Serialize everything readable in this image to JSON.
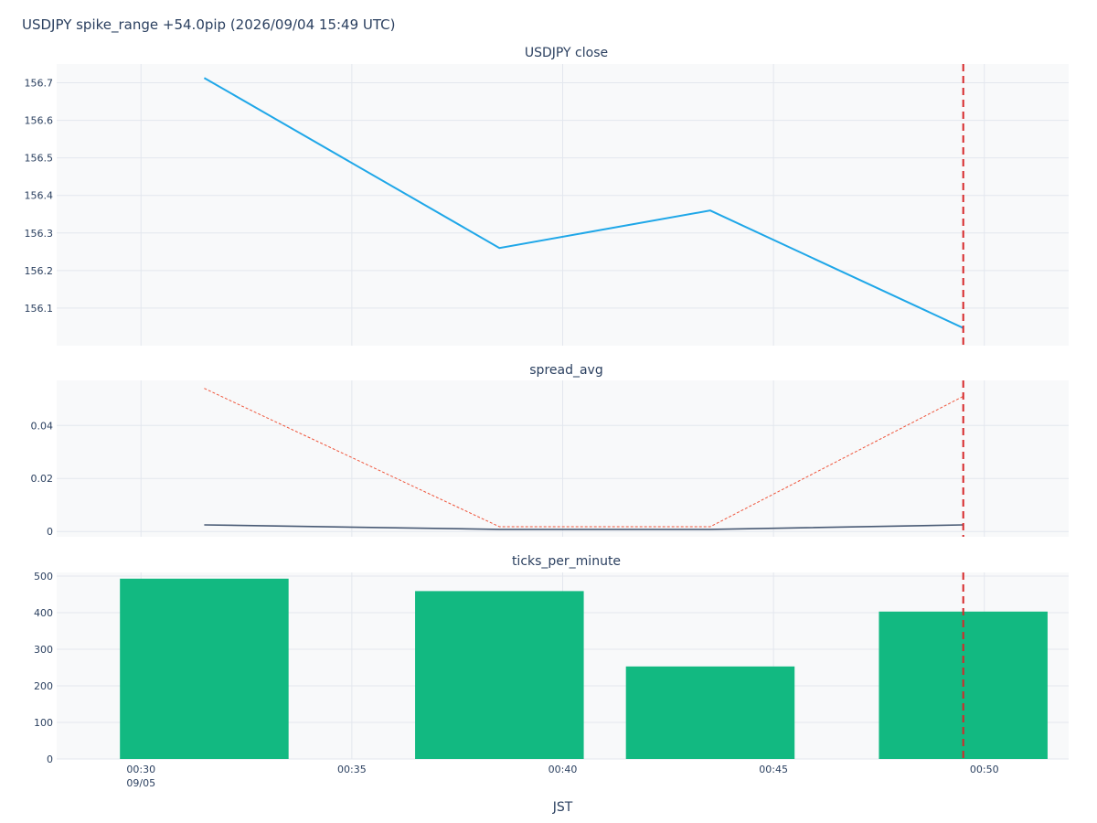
{
  "title": "USDJPY spike_range +54.0pip (2026/09/04 15:49 UTC)",
  "colors": {
    "plot_bg": "#f8f9fa",
    "grid": "#e3e7ee",
    "close_line": "#1fa7e8",
    "spread_line": "#485a74",
    "spread_max_line": "#ef553b",
    "bars": "#12b981",
    "marker_line": "#d62728",
    "text": "#2a3f5f"
  },
  "chart_data": [
    {
      "type": "line",
      "title": "USDJPY close",
      "x": [
        "00:31:30",
        "00:38:30",
        "00:43:30",
        "00:49:30"
      ],
      "series": [
        {
          "values": [
            156.713,
            156.26,
            156.36,
            156.047
          ]
        }
      ],
      "xlim": [
        "00:28",
        "00:52"
      ],
      "ylim": [
        156.0,
        156.75
      ],
      "yticks": [
        "156.1",
        "156.2",
        "156.3",
        "156.4",
        "156.5",
        "156.6",
        "156.7"
      ],
      "ytick_values": [
        156.1,
        156.2,
        156.3,
        156.4,
        156.5,
        156.6,
        156.7
      ],
      "grid": true,
      "event_marker_x": "00:49:30"
    },
    {
      "type": "line",
      "title": "spread_avg",
      "x": [
        "00:31:30",
        "00:38:30",
        "00:43:30",
        "00:49:30"
      ],
      "series": [
        {
          "style": "solid",
          "values": [
            0.0025,
            0.0008,
            0.0008,
            0.0025
          ]
        },
        {
          "style": "dotted",
          "values": [
            0.054,
            0.0018,
            0.0018,
            0.051
          ]
        }
      ],
      "xlim": [
        "00:28",
        "00:52"
      ],
      "ylim": [
        -0.002,
        0.057
      ],
      "yticks": [
        "0",
        "0.02",
        "0.04"
      ],
      "ytick_values": [
        0,
        0.02,
        0.04
      ],
      "grid": true,
      "event_marker_x": "00:49:30"
    },
    {
      "type": "bar",
      "title": "ticks_per_minute",
      "x": [
        "00:31:30",
        "00:38:30",
        "00:43:30",
        "00:49:30"
      ],
      "bar_width_minutes": 4,
      "values": [
        493,
        459,
        253,
        403
      ],
      "xlim": [
        "00:28",
        "00:52"
      ],
      "ylim": [
        0,
        510
      ],
      "yticks": [
        "0",
        "100",
        "200",
        "300",
        "400",
        "500"
      ],
      "ytick_values": [
        0,
        100,
        200,
        300,
        400,
        500
      ],
      "xticks": [
        "00:30",
        "00:35",
        "00:40",
        "00:45",
        "00:50"
      ],
      "xtick_values": [
        "00:30",
        "00:35",
        "00:40",
        "00:45",
        "00:50"
      ],
      "xtick_sublabel": "09/05",
      "xlabel": "JST",
      "grid": true,
      "event_marker_x": "00:49:30"
    }
  ]
}
